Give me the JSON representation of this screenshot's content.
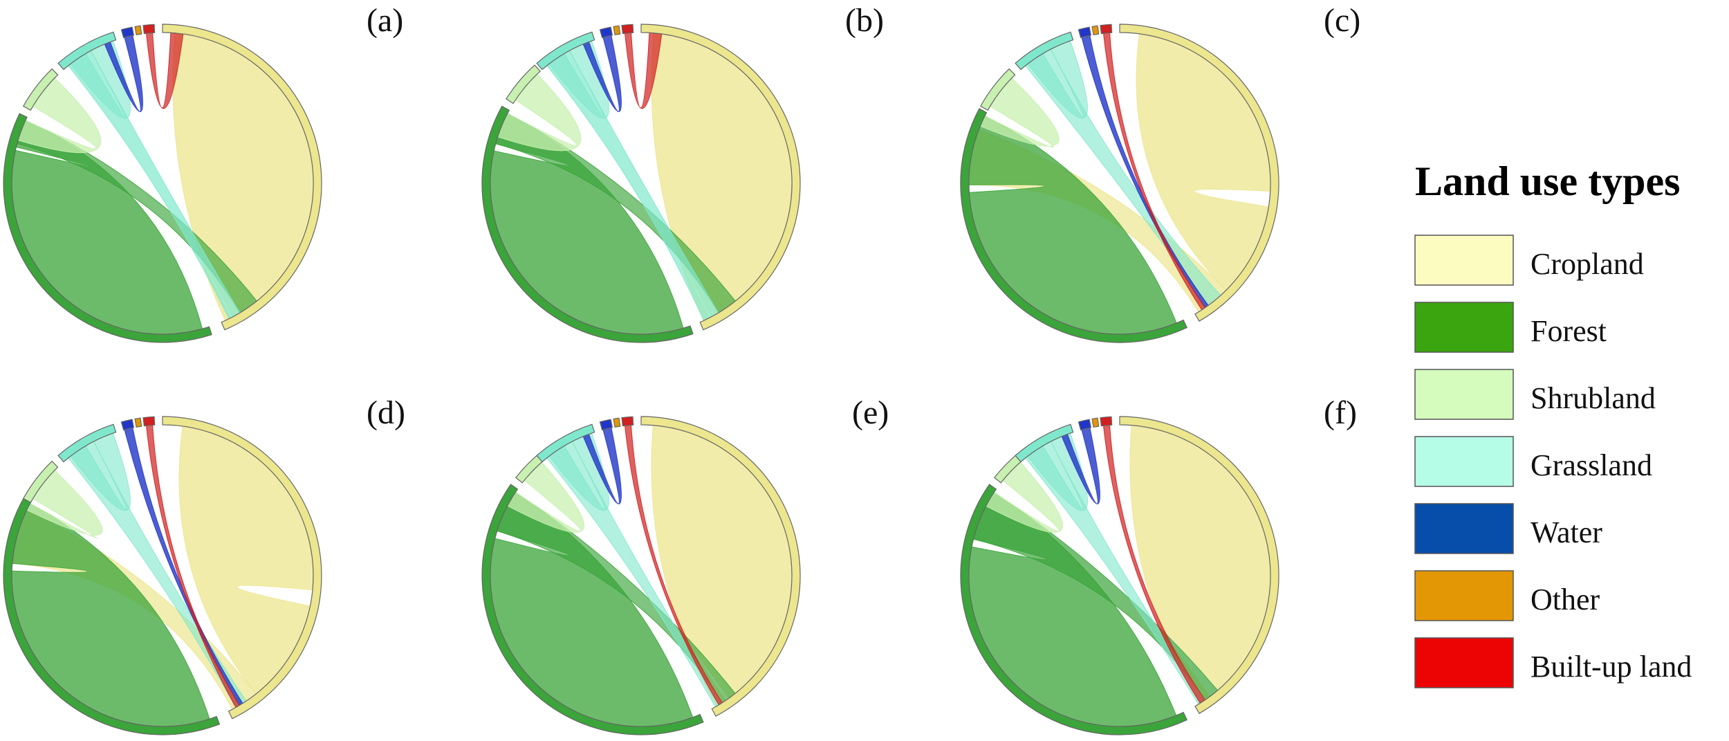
{
  "legend": {
    "title": "Land use types",
    "items": [
      {
        "key": "cropland",
        "label": "Cropland",
        "color": "#fdfcc0"
      },
      {
        "key": "forest",
        "label": "Forest",
        "color": "#3ba510"
      },
      {
        "key": "shrubland",
        "label": "Shrubland",
        "color": "#d5fbbd"
      },
      {
        "key": "grassland",
        "label": "Grassland",
        "color": "#b6fde7"
      },
      {
        "key": "water",
        "label": "Water",
        "color": "#064eaa"
      },
      {
        "key": "other",
        "label": "Other",
        "color": "#e39705"
      },
      {
        "key": "builtup",
        "label": "Built-up land",
        "color": "#ec0404"
      }
    ]
  },
  "diagram_colors": {
    "cropland": "#ece68e",
    "forest": "#3ba43a",
    "shrubland": "#c8f0b0",
    "grassland": "#7fe8cc",
    "water": "#2036c8",
    "other": "#e39705",
    "builtup": "#d02020"
  },
  "panels": [
    {
      "id": "a",
      "label": "(a)"
    },
    {
      "id": "b",
      "label": "(b)"
    },
    {
      "id": "c",
      "label": "(c)"
    },
    {
      "id": "d",
      "label": "(d)"
    },
    {
      "id": "e",
      "label": "(e)"
    },
    {
      "id": "f",
      "label": "(f)"
    }
  ]
}
